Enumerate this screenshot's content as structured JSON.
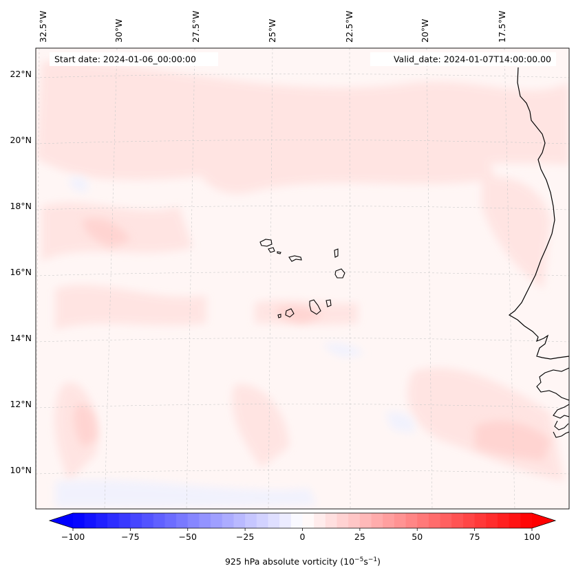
{
  "map": {
    "start_date": "Start date: 2024-01-06_00:00:00",
    "valid_date": "Valid_date: 2024-01-07T14:00:00.00",
    "lon_labels": [
      "32.5°W",
      "30°W",
      "27.5°W",
      "25°W",
      "22.5°W",
      "20°W",
      "17.5°W"
    ],
    "lat_labels": [
      "22°N",
      "20°N",
      "18°N",
      "16°N",
      "14°N",
      "12°N",
      "10°N"
    ],
    "extent": {
      "lon_min": -33.0,
      "lon_max": -16.7,
      "lat_min": 8.9,
      "lat_max": 22.8
    }
  },
  "colorbar": {
    "label": "925 hPa absolute vorticity (10",
    "label_exp1": "−5",
    "label_mid": "s",
    "label_exp2": "−1",
    "label_end": ")",
    "ticks": [
      "−100",
      "−75",
      "−50",
      "−25",
      "0",
      "25",
      "50",
      "75",
      "100"
    ],
    "tick_values": [
      -100,
      -75,
      -50,
      -25,
      0,
      25,
      50,
      75,
      100
    ],
    "range": [
      -100,
      100
    ],
    "levels": 40,
    "colormap": "bwr",
    "low_color": "#0000ff",
    "mid_color": "#ffffff",
    "high_color": "#ff0000"
  }
}
